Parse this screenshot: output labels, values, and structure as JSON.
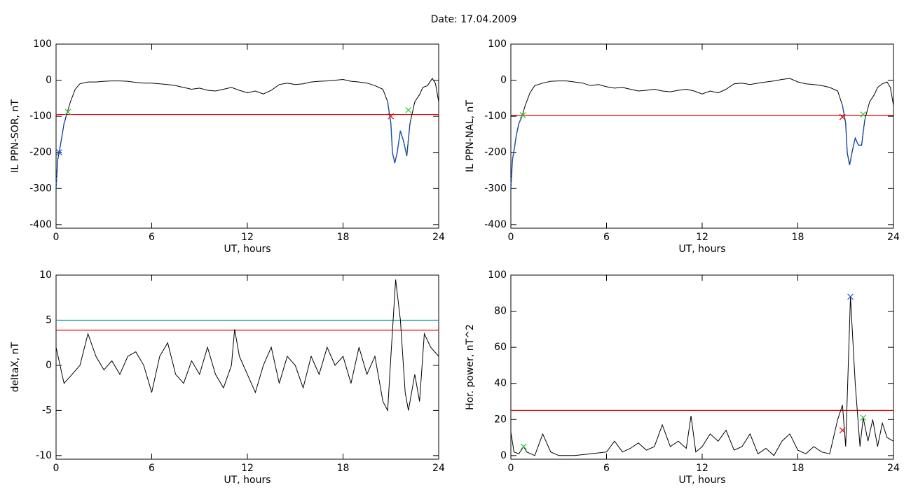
{
  "title": "Date:  17.04.2009",
  "chart_data": [
    {
      "type": "line",
      "ylabel": "IL PPN-SOR, nT",
      "xlabel": "UT, hours",
      "xlim": [
        0,
        24
      ],
      "xticks": [
        0,
        6,
        12,
        18,
        24
      ],
      "ylim": [
        -410,
        100
      ],
      "yticks": [
        -400,
        -300,
        -200,
        -100,
        0,
        100
      ],
      "series": [
        {
          "color": "#000000",
          "x": [
            0,
            0.1,
            0.2,
            0.35,
            0.5,
            0.7,
            0.9,
            1.2,
            1.5,
            2,
            2.5,
            3,
            3.5,
            4,
            4.5,
            5,
            5.5,
            6,
            6.5,
            7,
            7.5,
            8,
            8.5,
            9,
            9.5,
            10,
            10.5,
            11,
            11.5,
            12,
            12.5,
            13,
            13.5,
            14,
            14.5,
            15,
            15.5,
            16,
            16.5,
            17,
            17.5,
            18,
            18.5,
            19,
            19.5,
            20,
            20.5,
            20.8,
            21.0,
            21.1,
            21.25,
            21.4,
            21.6,
            21.8,
            22.0,
            22.2,
            22.5,
            22.8,
            23.0,
            23.3,
            23.6,
            23.8,
            24
          ],
          "values": [
            -300,
            -220,
            -200,
            -160,
            -120,
            -90,
            -60,
            -25,
            -10,
            -5,
            -5,
            -3,
            -2,
            -2,
            -3,
            -6,
            -8,
            -8,
            -10,
            -12,
            -15,
            -20,
            -25,
            -22,
            -28,
            -30,
            -25,
            -20,
            -28,
            -35,
            -30,
            -38,
            -28,
            -12,
            -8,
            -12,
            -10,
            -5,
            -3,
            -2,
            0,
            2,
            -3,
            -5,
            -8,
            -15,
            -25,
            -60,
            -120,
            -200,
            -230,
            -200,
            -140,
            -170,
            -210,
            -120,
            -60,
            -40,
            -20,
            -15,
            5,
            -10,
            -60
          ]
        },
        {
          "color": "#1f5fd0",
          "x": [
            0,
            0.1,
            0.2,
            0.35,
            0.5,
            0.7
          ],
          "values": [
            -300,
            -220,
            -200,
            -160,
            -120,
            -90
          ]
        },
        {
          "color": "#1f5fd0",
          "x": [
            20.8,
            21.0,
            21.1,
            21.25,
            21.4,
            21.6,
            21.8,
            22.0,
            22.2
          ],
          "values": [
            -60,
            -120,
            -200,
            -230,
            -200,
            -140,
            -170,
            -210,
            -120
          ]
        }
      ],
      "hlines": [
        {
          "value": -95,
          "color": "#e00000"
        }
      ],
      "markers": [
        {
          "x": 21.0,
          "y": -100,
          "color": "#e00000"
        },
        {
          "x": 0.75,
          "y": -88,
          "color": "#30c030"
        },
        {
          "x": 22.1,
          "y": -83,
          "color": "#30c030"
        },
        {
          "x": 0.2,
          "y": -200,
          "color": "#1f5fd0"
        }
      ]
    },
    {
      "type": "line",
      "ylabel": "IL PPN-NAL, nT",
      "xlabel": "UT, hours",
      "xlim": [
        0,
        24
      ],
      "xticks": [
        0,
        6,
        12,
        18,
        24
      ],
      "ylim": [
        -410,
        100
      ],
      "yticks": [
        -400,
        -300,
        -200,
        -100,
        0,
        100
      ],
      "series": [
        {
          "color": "#000000",
          "x": [
            0,
            0.1,
            0.2,
            0.35,
            0.5,
            0.7,
            0.9,
            1.2,
            1.5,
            2,
            2.5,
            3,
            3.5,
            4,
            4.5,
            5,
            5.5,
            6,
            6.5,
            7,
            7.5,
            8,
            8.5,
            9,
            9.5,
            10,
            10.5,
            11,
            11.5,
            12,
            12.5,
            13,
            13.5,
            14,
            14.5,
            15,
            15.5,
            16,
            16.5,
            17,
            17.5,
            18,
            18.5,
            19,
            19.5,
            20,
            20.5,
            20.8,
            21.0,
            21.1,
            21.25,
            21.4,
            21.6,
            21.8,
            22.0,
            22.2,
            22.5,
            22.8,
            23.0,
            23.3,
            23.6,
            23.8,
            24
          ],
          "values": [
            -300,
            -220,
            -195,
            -150,
            -120,
            -100,
            -70,
            -35,
            -15,
            -8,
            -3,
            -2,
            -2,
            -5,
            -8,
            -15,
            -12,
            -18,
            -22,
            -20,
            -25,
            -30,
            -28,
            -25,
            -30,
            -32,
            -28,
            -25,
            -30,
            -38,
            -30,
            -35,
            -25,
            -10,
            -8,
            -12,
            -8,
            -5,
            -2,
            2,
            5,
            -5,
            -10,
            -12,
            -15,
            -20,
            -30,
            -70,
            -120,
            -200,
            -235,
            -200,
            -160,
            -180,
            -180,
            -110,
            -60,
            -40,
            -20,
            -10,
            -5,
            -20,
            -70
          ]
        },
        {
          "color": "#1f5fd0",
          "x": [
            0,
            0.1,
            0.2,
            0.35,
            0.5,
            0.7
          ],
          "values": [
            -300,
            -220,
            -195,
            -150,
            -120,
            -100
          ]
        },
        {
          "color": "#1f5fd0",
          "x": [
            20.8,
            21.0,
            21.1,
            21.25,
            21.4,
            21.6,
            21.8,
            22.0,
            22.2
          ],
          "values": [
            -70,
            -120,
            -200,
            -235,
            -200,
            -160,
            -180,
            -180,
            -110
          ]
        }
      ],
      "hlines": [
        {
          "value": -97,
          "color": "#e00000"
        }
      ],
      "markers": [
        {
          "x": 20.8,
          "y": -102,
          "color": "#e00000"
        },
        {
          "x": 0.75,
          "y": -97,
          "color": "#30c030"
        },
        {
          "x": 22.1,
          "y": -95,
          "color": "#30c030"
        }
      ]
    },
    {
      "type": "line",
      "ylabel": "deltaX, nT",
      "xlabel": "UT, hours",
      "xlim": [
        0,
        24
      ],
      "xticks": [
        0,
        6,
        12,
        18,
        24
      ],
      "ylim": [
        -10.4,
        10
      ],
      "yticks": [
        -10,
        -5,
        0,
        5,
        10
      ],
      "series": [
        {
          "color": "#000000",
          "x": [
            0,
            0.5,
            1,
            1.5,
            2,
            2.5,
            3,
            3.5,
            4,
            4.5,
            5,
            5.5,
            6,
            6.5,
            7,
            7.5,
            8,
            8.5,
            9,
            9.5,
            10,
            10.5,
            11,
            11.2,
            11.5,
            12,
            12.5,
            13,
            13.5,
            14,
            14.5,
            15,
            15.5,
            16,
            16.5,
            17,
            17.5,
            18,
            18.5,
            19,
            19.5,
            20,
            20.5,
            20.8,
            21,
            21.3,
            21.6,
            21.9,
            22.1,
            22.5,
            22.8,
            23.1,
            23.5,
            24
          ],
          "values": [
            2,
            -2,
            -1,
            0,
            3.5,
            1,
            -0.5,
            0.5,
            -1,
            1,
            1.5,
            0,
            -3,
            1,
            2.5,
            -1,
            -2,
            0.5,
            -1,
            2,
            -1,
            -2.5,
            0,
            4,
            1,
            -1,
            -3,
            0,
            2,
            -2,
            1,
            0,
            -2.5,
            1,
            -1,
            2,
            0,
            1,
            -2,
            2,
            -1,
            1,
            -4,
            -5,
            1,
            9.5,
            5,
            -3,
            -5,
            -1,
            -4,
            3.5,
            2,
            1
          ]
        }
      ],
      "hlines": [
        {
          "value": 5,
          "color": "#009a9a"
        },
        {
          "value": 3.9,
          "color": "#e00000"
        }
      ],
      "markers": []
    },
    {
      "type": "line",
      "ylabel": "Hor. power, nT^2",
      "xlabel": "UT, hours",
      "xlim": [
        0,
        24
      ],
      "xticks": [
        0,
        6,
        12,
        18,
        24
      ],
      "ylim": [
        -2,
        100
      ],
      "yticks": [
        0,
        20,
        40,
        60,
        80,
        100
      ],
      "series": [
        {
          "color": "#000000",
          "x": [
            0,
            0.2,
            0.5,
            0.8,
            1,
            1.5,
            2,
            2.5,
            3,
            4,
            5,
            6,
            6.5,
            7,
            7.5,
            8,
            8.5,
            9,
            9.5,
            10,
            10.5,
            11,
            11.3,
            11.6,
            12,
            12.5,
            13,
            13.5,
            14,
            14.5,
            15,
            15.5,
            16,
            16.5,
            17,
            17.5,
            18,
            18.5,
            19,
            19.5,
            20,
            20.5,
            20.8,
            21,
            21.3,
            21.6,
            21.9,
            22.1,
            22.4,
            22.7,
            23,
            23.3,
            23.6,
            24
          ],
          "values": [
            13,
            2,
            1,
            5,
            2,
            0,
            12,
            2,
            0,
            0,
            1,
            2,
            8,
            2,
            4,
            7,
            3,
            5,
            17,
            5,
            8,
            4,
            22,
            2,
            5,
            12,
            8,
            14,
            3,
            5,
            12,
            1,
            4,
            0,
            8,
            12,
            3,
            1,
            5,
            2,
            1,
            20,
            28,
            5,
            88,
            40,
            5,
            21,
            8,
            20,
            5,
            18,
            10,
            8
          ]
        }
      ],
      "hlines": [
        {
          "value": 25,
          "color": "#e00000"
        }
      ],
      "markers": [
        {
          "x": 21.3,
          "y": 88,
          "color": "#1f5fd0"
        },
        {
          "x": 20.8,
          "y": 14,
          "color": "#e00000"
        },
        {
          "x": 0.8,
          "y": 5,
          "color": "#30c030"
        },
        {
          "x": 22.1,
          "y": 21,
          "color": "#30c030"
        }
      ]
    }
  ]
}
